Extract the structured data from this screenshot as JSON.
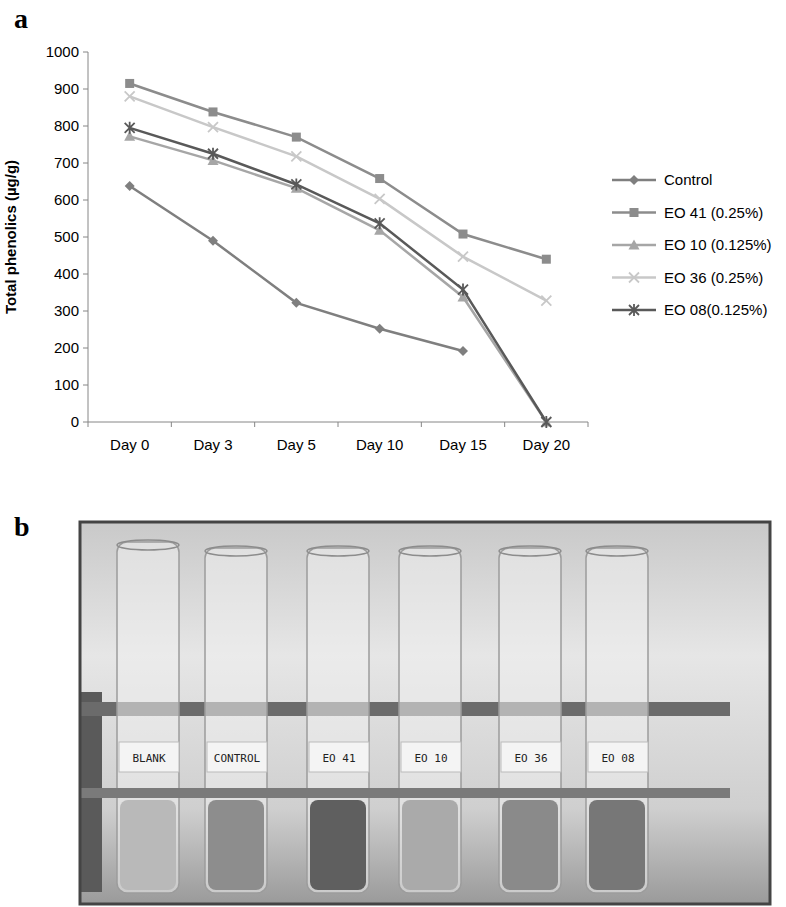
{
  "panel_labels": [
    "a",
    "b"
  ],
  "chart_data": {
    "type": "line",
    "ylabel": "Total phenolics (µg/g)",
    "categories": [
      "Day 0",
      "Day 3",
      "Day 5",
      "Day 10",
      "Day 15",
      "Day 20"
    ],
    "series": [
      {
        "name": "Control",
        "color": "#7f7f7f",
        "marker": "diamond",
        "values": [
          638,
          490,
          322,
          252,
          192,
          null
        ]
      },
      {
        "name": "EO 41 (0.25%)",
        "color": "#8c8c8c",
        "marker": "square",
        "values": [
          915,
          838,
          770,
          658,
          508,
          440
        ]
      },
      {
        "name": "EO 10 (0.125%)",
        "color": "#a6a6a6",
        "marker": "triangle",
        "values": [
          772,
          707,
          632,
          518,
          338,
          0
        ]
      },
      {
        "name": "EO 36 (0.25%)",
        "color": "#c8c8c8",
        "marker": "x",
        "values": [
          880,
          797,
          718,
          603,
          447,
          328
        ]
      },
      {
        "name": "EO 08(0.125%)",
        "color": "#595959",
        "marker": "star",
        "values": [
          795,
          725,
          642,
          537,
          358,
          0
        ]
      }
    ],
    "ylim": [
      0,
      1000
    ],
    "yticks": [
      0,
      100,
      200,
      300,
      400,
      500,
      600,
      700,
      800,
      900,
      1000
    ],
    "grid": false,
    "legend": "right"
  },
  "photo": {
    "tube_labels": [
      "BLANK",
      "CONTROL",
      "EO 41",
      "EO 10",
      "EO 36",
      "EO 08"
    ]
  }
}
